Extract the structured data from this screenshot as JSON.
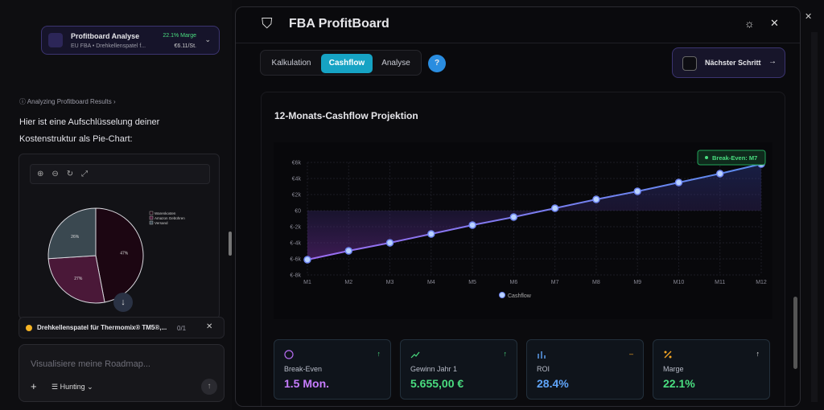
{
  "left": {
    "card_title": "Profitboard Analyse",
    "card_subtitle": "EU FBA • Drehkellenspatel f...",
    "card_margin": "22.1% Marge",
    "card_price": "€6.11/St.",
    "status": "Analyzing Profitboard Results",
    "message": "Hier ist eine Aufschlüsselung deiner Kostenstruktur als Pie-Chart:",
    "task": "Drehkellenspatel für Thermomix® TM5®,...",
    "task_count": "0/1",
    "input_placeholder": "Visualisiere meine Roadmap...",
    "mode": "Hunting"
  },
  "header": {
    "title": "FBA ProfitBoard"
  },
  "tabs": [
    "Kalkulation",
    "Cashflow",
    "Analyse"
  ],
  "help": "?",
  "next_button": "Nächster Schritt",
  "kpis": [
    {
      "label": "Break-Even",
      "value": "1.5 Mon."
    },
    {
      "label": "Gewinn Jahr 1",
      "value": "5.655,00 €"
    },
    {
      "label": "ROI",
      "value": "28.4%"
    },
    {
      "label": "Marge",
      "value": "22.1%"
    }
  ],
  "chart_data": [
    {
      "type": "pie",
      "categories": [
        "Warenkosten",
        "Amazon Gebühren",
        "Versand"
      ],
      "values": [
        47,
        27,
        26
      ],
      "value_labels": [
        "47%",
        "27%",
        "26%"
      ],
      "colors": [
        "#1c0612",
        "#4a1838",
        "#3a4850"
      ]
    },
    {
      "type": "line",
      "title": "12-Monats-Cashflow Projektion",
      "annotation": "Break-Even: M7",
      "categories": [
        "M1",
        "M2",
        "M3",
        "M4",
        "M5",
        "M6",
        "M7",
        "M8",
        "M9",
        "M10",
        "M11",
        "M12"
      ],
      "series": [
        {
          "name": "Cashflow",
          "color": "#6f86f2",
          "values": [
            -6100,
            -5000,
            -4000,
            -2900,
            -1800,
            -800,
            300,
            1400,
            2400,
            3500,
            4600,
            5800
          ]
        }
      ],
      "ylim": [
        -8000,
        6000
      ],
      "yticks": [
        {
          "value": -8000,
          "label": "€-8k"
        },
        {
          "value": -6000,
          "label": "€-6k"
        },
        {
          "value": -4000,
          "label": "€-4k"
        },
        {
          "value": -2000,
          "label": "€-2k"
        },
        {
          "value": 0,
          "label": "€0"
        },
        {
          "value": 2000,
          "label": "€2k"
        },
        {
          "value": 4000,
          "label": "€4k"
        },
        {
          "value": 6000,
          "label": "€6k"
        }
      ],
      "grid": true
    }
  ]
}
